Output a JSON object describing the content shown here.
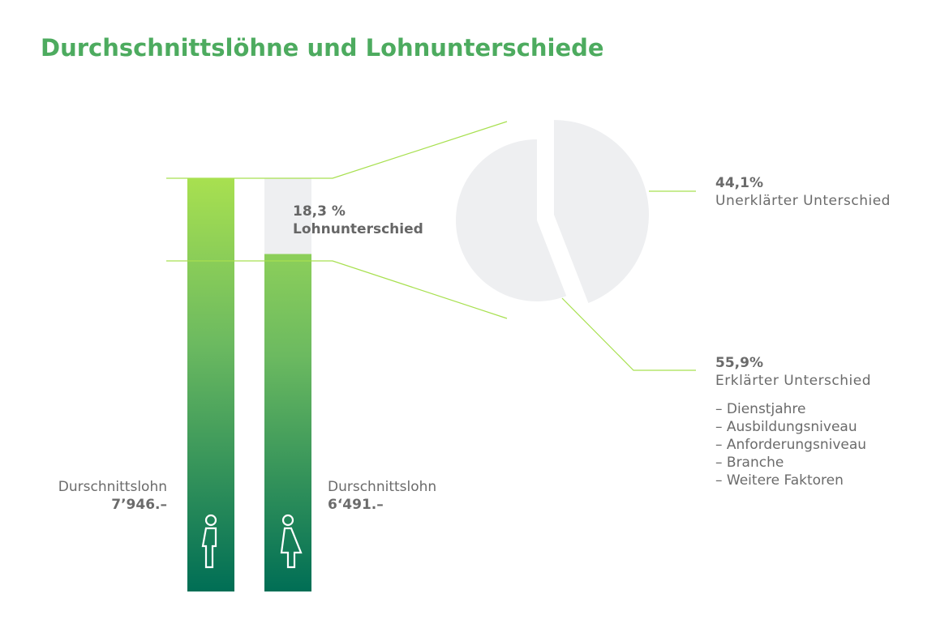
{
  "title": "Durchschnittslöhne und Lohnunterschiede",
  "chart_data": [
    {
      "type": "bar",
      "categories": [
        "Männer",
        "Frauen"
      ],
      "icons": [
        "man-icon",
        "woman-icon"
      ],
      "values": [
        7946,
        6491
      ],
      "labels": [
        {
          "caption": "Durschnittslohn",
          "value": "7’946.–"
        },
        {
          "caption": "Durschnittslohn",
          "value": "6‘491.–"
        }
      ],
      "gap": {
        "value": "18,3 %",
        "label": "Lohnunterschied",
        "percent": 18.3
      },
      "colors": {
        "gradient_top": "#a8e050",
        "gradient_bottom": "#006e55",
        "gap": "#eeeff1"
      }
    },
    {
      "type": "pie",
      "slices": [
        {
          "value": 44.1,
          "value_label": "44,1%",
          "label": "Unerklärter Unterschied",
          "exploded": true
        },
        {
          "value": 55.9,
          "value_label": "55,9%",
          "label": "Erklärter Unterschied",
          "factors": [
            "– Dienstjahre",
            "– Ausbildungsniveau",
            "– Anforderungsniveau",
            "– Branche",
            "– Weitere Faktoren"
          ]
        }
      ],
      "colors": {
        "slice": "#eeeff1",
        "line": "#a8e050"
      }
    }
  ]
}
